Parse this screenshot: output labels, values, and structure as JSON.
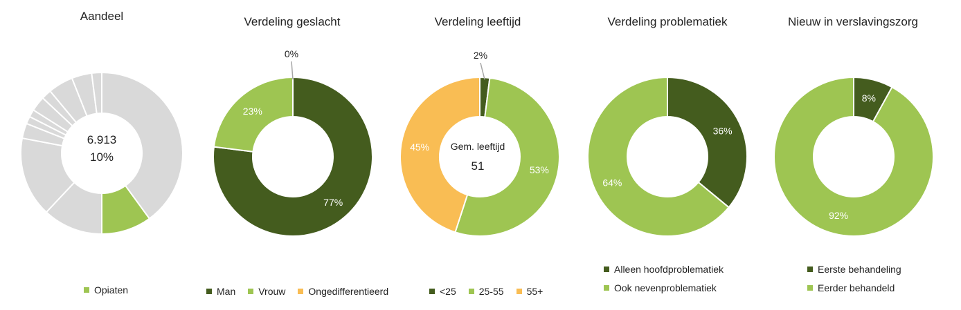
{
  "colors": {
    "dark_green": "#445c1e",
    "light_green": "#9ec552",
    "orange": "#f9bd54",
    "grey": "#d9d9d9",
    "leader": "#a6a6a6"
  },
  "chart_data": [
    {
      "type": "pie",
      "title": "Aandeel",
      "center_value": "6.913",
      "center_percent": "10%",
      "slices": [
        {
          "name": "",
          "value": 40
        },
        {
          "name": "Opiaten",
          "value": 10
        },
        {
          "name": "",
          "value": 12
        },
        {
          "name": "",
          "value": 16
        },
        {
          "name": "",
          "value": 3
        },
        {
          "name": "",
          "value": 1.5
        },
        {
          "name": "",
          "value": 1.5
        },
        {
          "name": "",
          "value": 3
        },
        {
          "name": "",
          "value": 2
        },
        {
          "name": "",
          "value": 5
        },
        {
          "name": "",
          "value": 4
        },
        {
          "name": "",
          "value": 2
        }
      ],
      "legend": [
        "Opiaten"
      ]
    },
    {
      "type": "pie",
      "title": "Verdeling geslacht",
      "slices": [
        {
          "name": "Man",
          "value": 77,
          "label": "77%"
        },
        {
          "name": "Vrouw",
          "value": 23,
          "label": "23%"
        },
        {
          "name": "Ongedifferentieerd",
          "value": 0,
          "label": "0%"
        }
      ],
      "legend": [
        "Man",
        "Vrouw",
        "Ongedifferentieerd"
      ]
    },
    {
      "type": "pie",
      "title": "Verdeling leeftijd",
      "center_label": "Gem. leeftijd",
      "center_value": "51",
      "slices": [
        {
          "name": "<25",
          "value": 2,
          "label": "2%"
        },
        {
          "name": "25-55",
          "value": 53,
          "label": "53%"
        },
        {
          "name": "55+",
          "value": 45,
          "label": "45%"
        }
      ],
      "legend": [
        "<25",
        "25-55",
        "55+"
      ]
    },
    {
      "type": "pie",
      "title": "Verdeling problematiek",
      "slices": [
        {
          "name": "Alleen hoofdproblematiek",
          "value": 36,
          "label": "36%"
        },
        {
          "name": "Ook nevenproblematiek",
          "value": 64,
          "label": "64%"
        }
      ],
      "legend": [
        "Alleen hoofdproblematiek",
        "Ook nevenproblematiek"
      ]
    },
    {
      "type": "pie",
      "title": "Nieuw in verslavingszorg",
      "slices": [
        {
          "name": "Eerste behandeling",
          "value": 8,
          "label": "8%"
        },
        {
          "name": "Eerder behandeld",
          "value": 92,
          "label": "92%"
        }
      ],
      "legend": [
        "Eerste behandeling",
        "Eerder behandeld"
      ]
    }
  ]
}
